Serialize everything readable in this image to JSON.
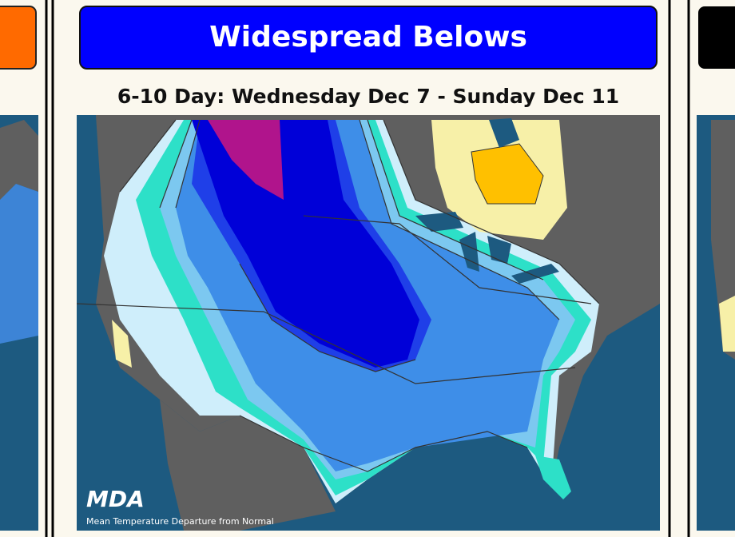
{
  "header": {
    "title": "Widespread Belows",
    "subtitle": "6-10 Day: Wednesday Dec 7 - Sunday Dec 11"
  },
  "map": {
    "logo": "MDA",
    "caption": "Mean Temperature Departure from Normal"
  }
}
